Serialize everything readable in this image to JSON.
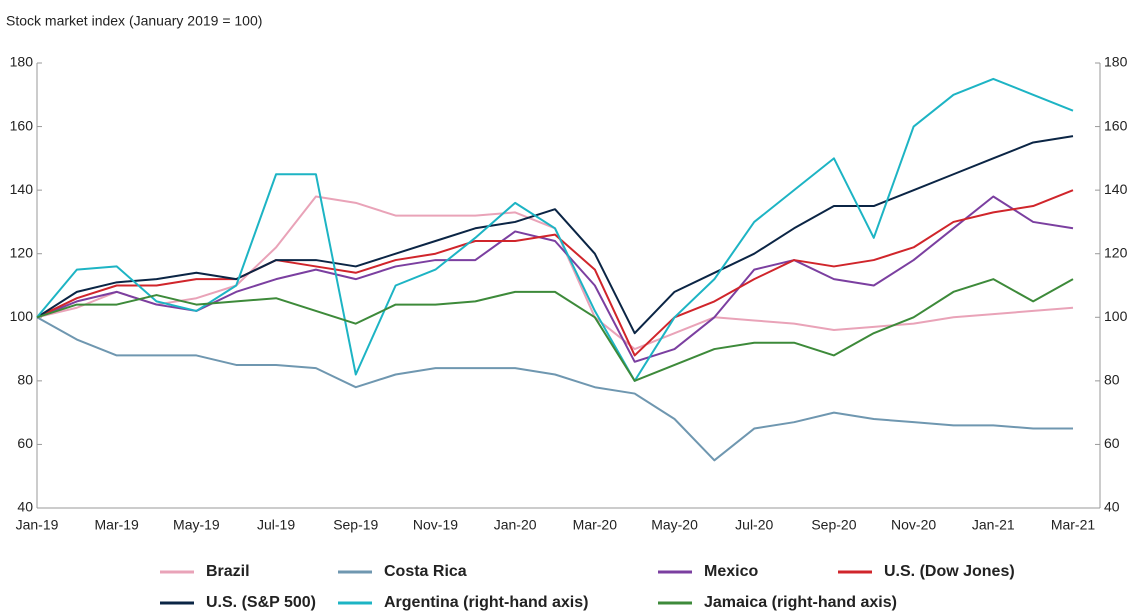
{
  "chart_data": {
    "type": "line",
    "title": "Stock market index (January 2019 = 100)",
    "categories": [
      "Jan-19",
      null,
      "Mar-19",
      null,
      "May-19",
      null,
      "Jul-19",
      null,
      "Sep-19",
      null,
      "Nov-19",
      null,
      "Jan-20",
      null,
      "Mar-20",
      null,
      "May-20",
      null,
      "Jul-20",
      null,
      "Sep-20",
      null,
      "Nov-20",
      null,
      "Jan-21",
      null,
      "Mar-21"
    ],
    "series": [
      {
        "name": "Brazil",
        "color": "#e9a3b8",
        "values": [
          100,
          103,
          108,
          104,
          106,
          110,
          122,
          138,
          136,
          132,
          132,
          132,
          133,
          128,
          100,
          90,
          95,
          100,
          99,
          98,
          96,
          97,
          98,
          100,
          101,
          102,
          103
        ]
      },
      {
        "name": "Costa Rica",
        "color": "#6f97b0",
        "values": [
          100,
          93,
          88,
          88,
          88,
          85,
          85,
          84,
          78,
          82,
          84,
          84,
          84,
          82,
          78,
          76,
          68,
          55,
          65,
          67,
          70,
          68,
          67,
          66,
          66,
          65,
          65
        ]
      },
      {
        "name": "Mexico",
        "color": "#7b3fa0",
        "values": [
          100,
          105,
          108,
          104,
          102,
          108,
          112,
          115,
          112,
          116,
          118,
          118,
          127,
          124,
          110,
          86,
          90,
          100,
          115,
          118,
          112,
          110,
          118,
          128,
          138,
          130,
          128
        ]
      },
      {
        "name": "U.S. (Dow Jones)",
        "color": "#d0252b",
        "values": [
          100,
          106,
          110,
          110,
          112,
          112,
          118,
          116,
          114,
          118,
          120,
          124,
          124,
          126,
          115,
          88,
          100,
          105,
          112,
          118,
          116,
          118,
          122,
          130,
          133,
          135,
          140
        ]
      },
      {
        "name": "U.S. (S&P 500)",
        "color": "#0b2545",
        "values": [
          100,
          108,
          111,
          112,
          114,
          112,
          118,
          118,
          116,
          120,
          124,
          128,
          130,
          134,
          120,
          95,
          108,
          114,
          120,
          128,
          135,
          135,
          140,
          145,
          150,
          155,
          157
        ]
      },
      {
        "name": "Argentina (right-hand axis)",
        "color": "#1db4c4",
        "axis": "y2",
        "values": [
          100,
          115,
          116,
          105,
          102,
          110,
          145,
          145,
          82,
          110,
          115,
          125,
          136,
          128,
          102,
          80,
          100,
          112,
          130,
          140,
          150,
          125,
          160,
          170,
          175,
          170,
          165
        ]
      },
      {
        "name": "Jamaica (right-hand axis)",
        "color": "#3d8a3a",
        "axis": "y2",
        "values": [
          100,
          104,
          104,
          107,
          104,
          105,
          106,
          102,
          98,
          104,
          104,
          105,
          108,
          108,
          100,
          80,
          85,
          90,
          92,
          92,
          88,
          95,
          100,
          108,
          112,
          105,
          112
        ]
      }
    ],
    "ylim": [
      40,
      180
    ],
    "yticks": [
      40,
      60,
      80,
      100,
      120,
      140,
      160,
      180
    ],
    "y2lim": [
      40,
      180
    ],
    "y2ticks": [
      40,
      60,
      80,
      100,
      120,
      140,
      160,
      180
    ],
    "grid": false
  }
}
